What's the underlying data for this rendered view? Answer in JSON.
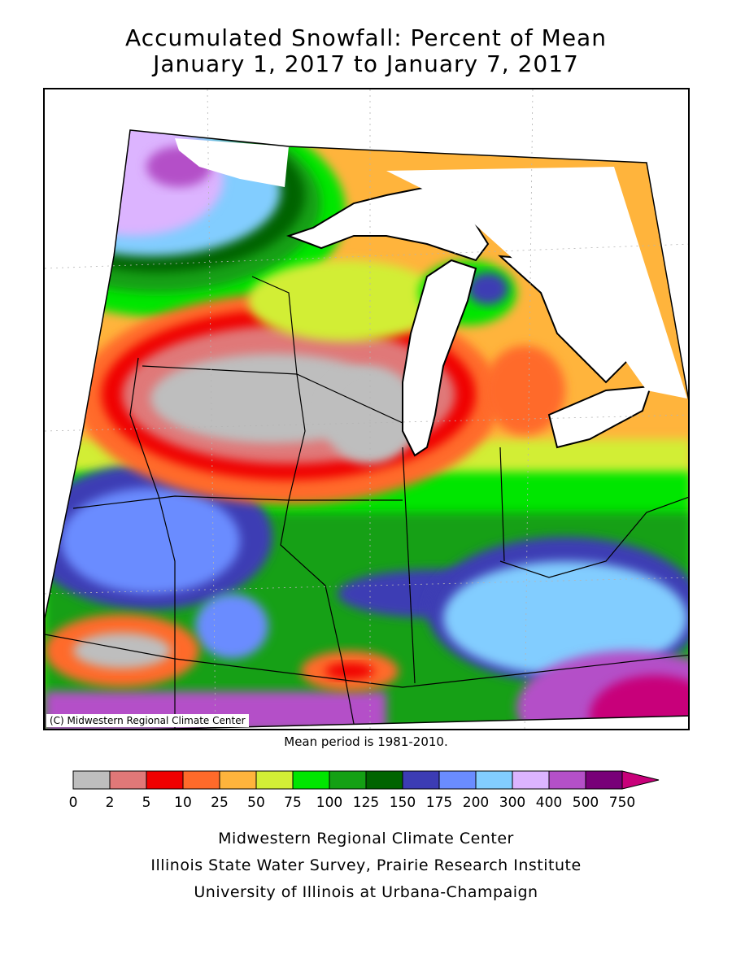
{
  "title": {
    "line1": "Accumulated Snowfall: Percent of Mean",
    "line2": "January 1, 2017 to January 7, 2017"
  },
  "map": {
    "copyright": "(C) Midwestern Regional Climate Center",
    "mean_period_note": "Mean period is 1981-2010."
  },
  "legend": {
    "tick_labels": [
      "0",
      "2",
      "5",
      "10",
      "25",
      "50",
      "75",
      "100",
      "125",
      "150",
      "175",
      "200",
      "300",
      "400",
      "500",
      "750"
    ],
    "colors": [
      "#bebebe",
      "#e07878",
      "#f00000",
      "#ff6a2a",
      "#ffb43c",
      "#d2ee36",
      "#00e600",
      "#14a014",
      "#006400",
      "#3c3cb4",
      "#6a8cff",
      "#82cdff",
      "#dcb4ff",
      "#b450c8",
      "#780078",
      "#c8007a"
    ]
  },
  "footer": {
    "line1": "Midwestern Regional Climate Center",
    "line2": "Illinois State Water Survey, Prairie Research Institute",
    "line3": "University of Illinois at Urbana-Champaign"
  }
}
